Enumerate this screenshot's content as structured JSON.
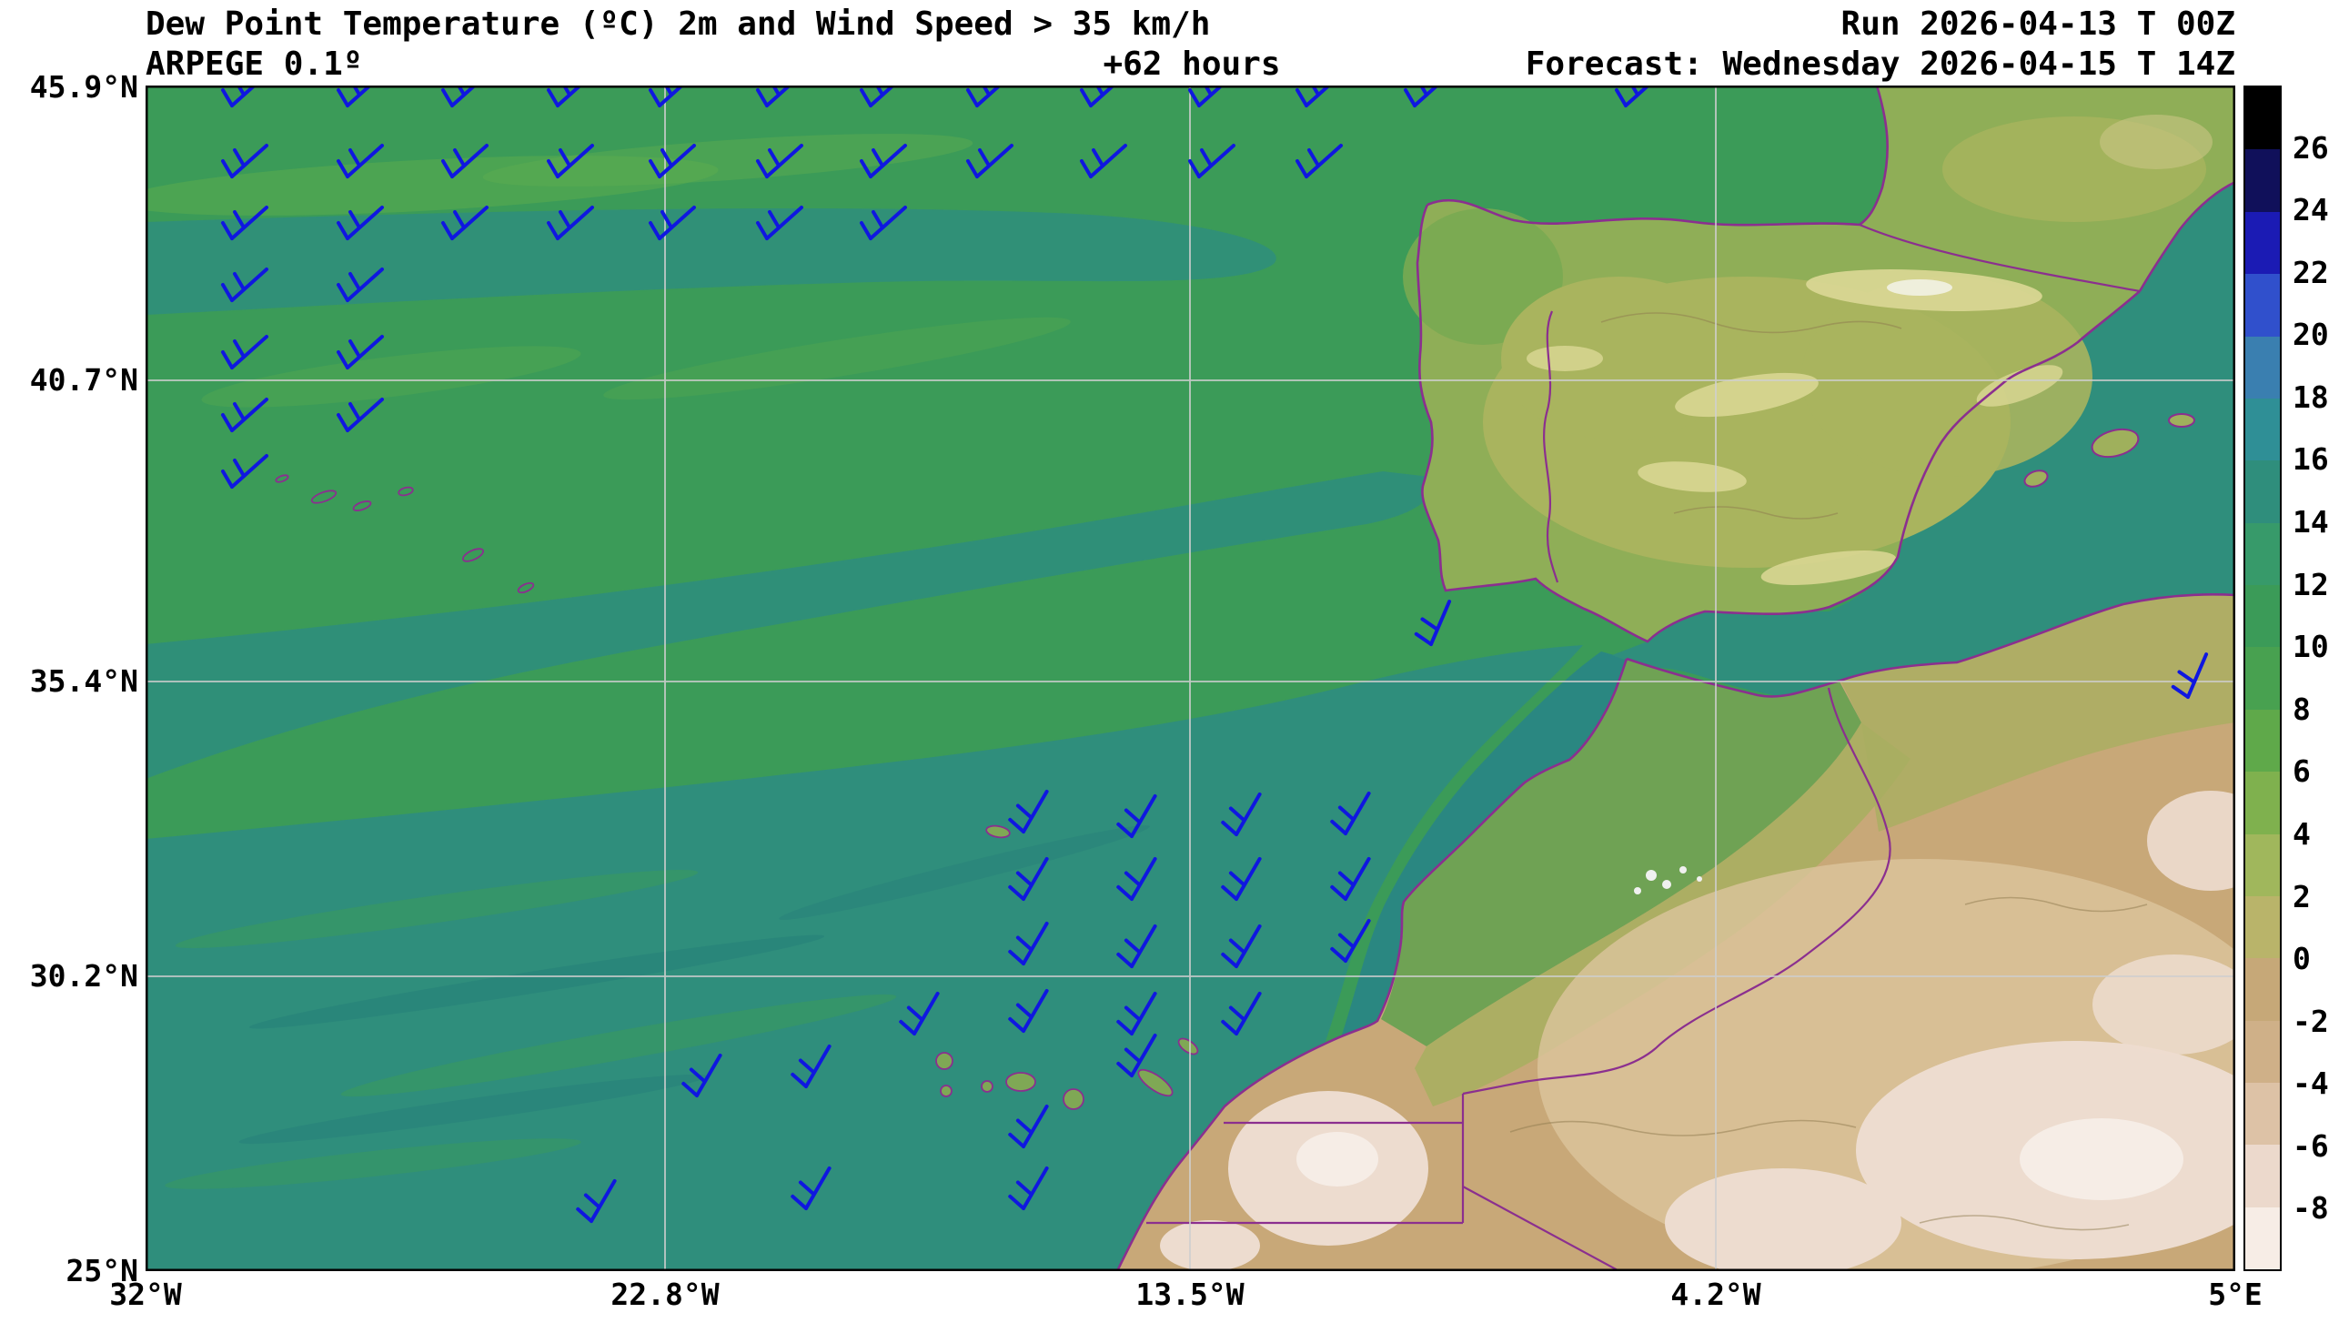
{
  "header": {
    "title": "Dew Point Temperature (ºC) 2m and Wind Speed > 35 km/h",
    "model": "ARPEGE 0.1º",
    "lead_time": "+62 hours",
    "run": "Run 2026-04-13 T 00Z",
    "forecast": "Forecast: Wednesday 2026-04-15 T 14Z"
  },
  "chart_data": {
    "type": "heatmap",
    "subtype": "filled-contour weather map with wind barbs",
    "title": "Dew Point Temperature (ºC) 2m and Wind Speed > 35 km/h",
    "variable": "Dew point temperature at 2 m",
    "unit": "ºC",
    "wind_threshold": "Wind Speed > 35 km/h",
    "model": "ARPEGE 0.1º",
    "run": "2026-04-13 T 00Z",
    "lead_hours": 62,
    "forecast_valid": "Wednesday 2026-04-15 T 14Z",
    "extent": {
      "lon_min": "32°W",
      "lon_max": "5°E",
      "lat_min": "25°N",
      "lat_max": "45.9°N"
    },
    "x_axis": {
      "ticks": [
        "32°W",
        "22.8°W",
        "13.5°W",
        "4.2°W",
        "5°E"
      ]
    },
    "y_axis": {
      "ticks": [
        "45.9°N",
        "40.7°N",
        "35.4°N",
        "30.2°N",
        "25°N"
      ]
    },
    "grid": true,
    "legend_position": "right-colorbar",
    "colorbar": {
      "unit": "ºC",
      "tick_labels": [
        "26",
        "24",
        "22",
        "20",
        "18",
        "16",
        "14",
        "12",
        "10",
        "8",
        "6",
        "4",
        "2",
        "0",
        "-2",
        "-4",
        "-6",
        "-8"
      ],
      "segment_colors_top_to_bottom": [
        "#000000",
        "#10105a",
        "#1b1bb4",
        "#3050cc",
        "#3a7fb0",
        "#2f8f96",
        "#2f8e7c",
        "#379a6a",
        "#3b9b58",
        "#48a150",
        "#5fa94a",
        "#7fb14e",
        "#a0b75c",
        "#b9b46a",
        "#c6a878",
        "#cfb088",
        "#ddc2a6",
        "#ecd9cc",
        "#f7ede6"
      ]
    },
    "palette_notes": {
      "ocean_green_10_12": "#3b9b58",
      "ocean_teal_14_16": "#2f8e7c",
      "land_spain_yellow_green": "#a9b45e",
      "sahara_tan": "#c8a878",
      "sahara_pale_pink": "#eddccf",
      "coast_border_purple": "#8b2f8f"
    }
  },
  "wind_barbs": {
    "color": "#0f17e0",
    "positions": [
      [
        95,
        22,
        0
      ],
      [
        222,
        22,
        0
      ],
      [
        337,
        22,
        0
      ],
      [
        453,
        22,
        0
      ],
      [
        565,
        22,
        0
      ],
      [
        683,
        22,
        0
      ],
      [
        797,
        22,
        0
      ],
      [
        914,
        22,
        0
      ],
      [
        1039,
        22,
        0
      ],
      [
        1158,
        22,
        0
      ],
      [
        1276,
        22,
        0
      ],
      [
        1395,
        22,
        0
      ],
      [
        1627,
        22,
        0
      ],
      [
        95,
        100,
        0
      ],
      [
        222,
        100,
        0
      ],
      [
        337,
        100,
        0
      ],
      [
        453,
        100,
        0
      ],
      [
        565,
        100,
        0
      ],
      [
        683,
        100,
        0
      ],
      [
        797,
        100,
        0
      ],
      [
        914,
        100,
        0
      ],
      [
        1039,
        100,
        0
      ],
      [
        1158,
        100,
        0
      ],
      [
        1276,
        100,
        0
      ],
      [
        95,
        168,
        0
      ],
      [
        222,
        168,
        0
      ],
      [
        337,
        168,
        0
      ],
      [
        453,
        168,
        0
      ],
      [
        565,
        168,
        0
      ],
      [
        683,
        168,
        0
      ],
      [
        797,
        168,
        0
      ],
      [
        95,
        236,
        0
      ],
      [
        222,
        236,
        0
      ],
      [
        95,
        310,
        0
      ],
      [
        222,
        310,
        0
      ],
      [
        95,
        379,
        0
      ],
      [
        222,
        379,
        0
      ],
      [
        95,
        441,
        0
      ],
      [
        965,
        820,
        -18
      ],
      [
        1084,
        825,
        -18
      ],
      [
        1199,
        823,
        -18
      ],
      [
        1319,
        822,
        -18
      ],
      [
        965,
        894,
        -18
      ],
      [
        1084,
        894,
        -18
      ],
      [
        1199,
        894,
        -18
      ],
      [
        1319,
        894,
        -18
      ],
      [
        965,
        965,
        -18
      ],
      [
        1084,
        968,
        -18
      ],
      [
        1199,
        968,
        -18
      ],
      [
        1319,
        962,
        -18
      ],
      [
        965,
        1039,
        -18
      ],
      [
        1084,
        1042,
        -18
      ],
      [
        1199,
        1042,
        -18
      ],
      [
        845,
        1042,
        -18
      ],
      [
        726,
        1100,
        -18
      ],
      [
        606,
        1110,
        -18
      ],
      [
        1084,
        1088,
        -18
      ],
      [
        965,
        1166,
        -18
      ],
      [
        726,
        1234,
        -18
      ],
      [
        965,
        1234,
        -18
      ],
      [
        490,
        1248,
        -18
      ],
      [
        1413,
        614,
        -25
      ],
      [
        2245,
        672,
        -25
      ]
    ]
  }
}
